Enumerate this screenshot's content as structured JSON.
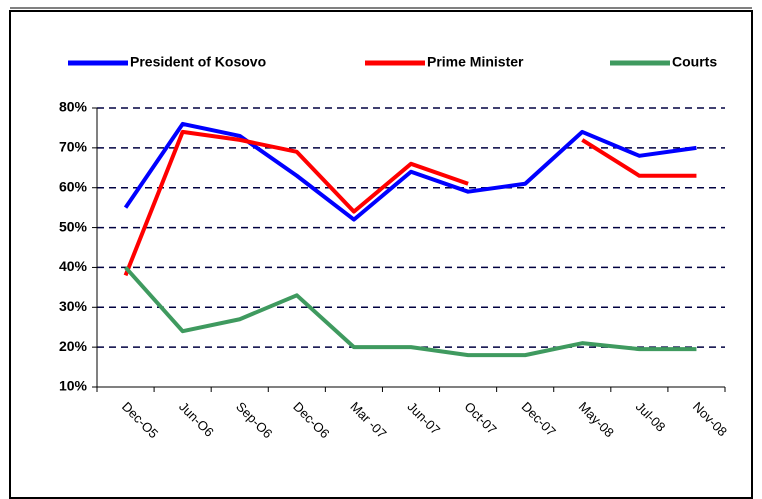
{
  "chart_data": {
    "type": "line",
    "categories": [
      "Dec-O5",
      "Jun-O6",
      "Sep-O6",
      "Dec-O6",
      "Mar -07",
      "Jun-07",
      "Oct-07",
      "Dec-07",
      "May-08",
      "Jul-08",
      "Nov-08"
    ],
    "series": [
      {
        "name": "President of Kosovo",
        "color": "#0000ff",
        "values": [
          55,
          76,
          73,
          63,
          52,
          64,
          59,
          61,
          74,
          68,
          70
        ]
      },
      {
        "name": "Prime Minister",
        "color": "#ff0000",
        "values": [
          38,
          74,
          72,
          69,
          54,
          66,
          61,
          null,
          72,
          63,
          63
        ]
      },
      {
        "name": "Courts",
        "color": "#3f9a5f",
        "values": [
          40,
          24,
          27,
          33,
          20,
          20,
          18,
          18,
          21,
          19.5,
          19.5
        ]
      }
    ],
    "ylim": [
      10,
      80
    ],
    "yticks": [
      {
        "value": 10,
        "label": "10%"
      },
      {
        "value": 20,
        "label": "20%"
      },
      {
        "value": 30,
        "label": "30%"
      },
      {
        "value": 40,
        "label": "40%"
      },
      {
        "value": 50,
        "label": "50%"
      },
      {
        "value": 60,
        "label": "60%"
      },
      {
        "value": 70,
        "label": "70%"
      },
      {
        "value": 80,
        "label": "80%"
      }
    ],
    "grid": true,
    "legend": "top"
  }
}
